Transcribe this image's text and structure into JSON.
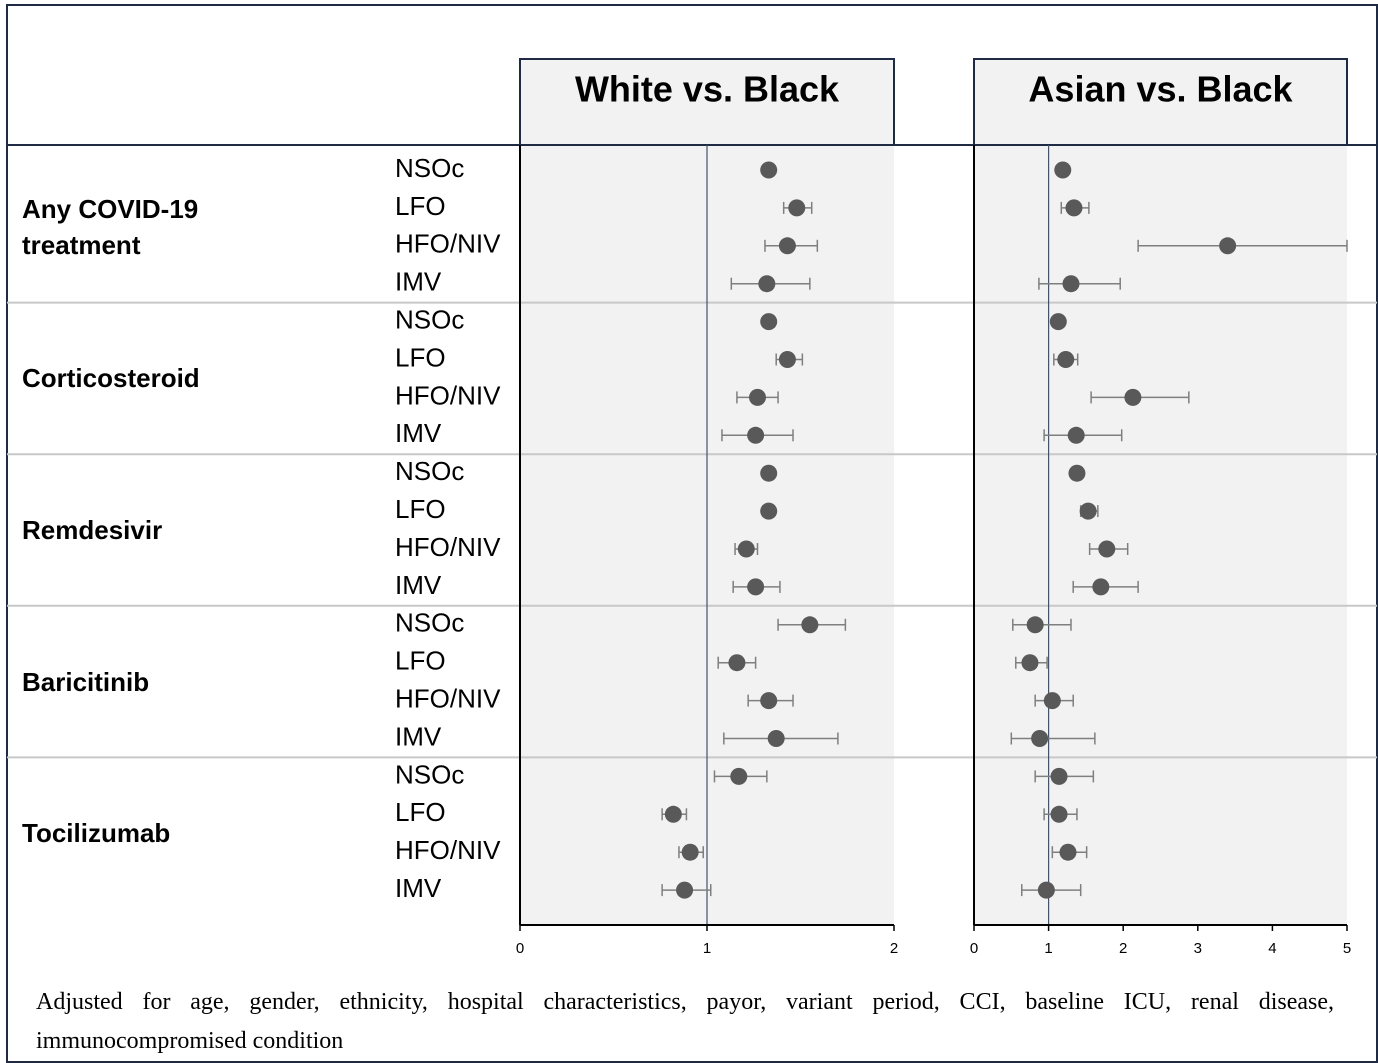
{
  "rows": [
    {
      "group": "Any COVID-19 treatment",
      "labels": [
        "NSOc",
        "LFO",
        "HFO/NIV",
        "IMV"
      ]
    },
    {
      "group": "Corticosteroid",
      "labels": [
        "NSOc",
        "LFO",
        "HFO/NIV",
        "IMV"
      ]
    },
    {
      "group": "Remdesivir",
      "labels": [
        "NSOc",
        "LFO",
        "HFO/NIV",
        "IMV"
      ]
    },
    {
      "group": "Baricitinib",
      "labels": [
        "NSOc",
        "LFO",
        "HFO/NIV",
        "IMV"
      ]
    },
    {
      "group": "Tocilizumab",
      "labels": [
        "NSOc",
        "LFO",
        "HFO/NIV",
        "IMV"
      ]
    }
  ],
  "chart_data": [
    {
      "type": "forest",
      "title": "White vs. Black",
      "xlim": [
        0,
        2
      ],
      "xticks": [
        0,
        1,
        2
      ],
      "reference": 1,
      "color": "#595959",
      "values": [
        1.33,
        1.48,
        1.43,
        1.32,
        1.33,
        1.43,
        1.27,
        1.26,
        1.33,
        1.33,
        1.21,
        1.26,
        1.55,
        1.16,
        1.33,
        1.37,
        1.17,
        0.82,
        0.91,
        0.88
      ],
      "lower": [
        1.31,
        1.41,
        1.31,
        1.13,
        1.31,
        1.37,
        1.16,
        1.08,
        1.31,
        1.3,
        1.15,
        1.14,
        1.38,
        1.06,
        1.22,
        1.09,
        1.04,
        0.76,
        0.85,
        0.76
      ],
      "upper": [
        1.35,
        1.56,
        1.59,
        1.55,
        1.36,
        1.51,
        1.38,
        1.46,
        1.35,
        1.35,
        1.27,
        1.39,
        1.74,
        1.26,
        1.46,
        1.7,
        1.32,
        0.89,
        0.98,
        1.02
      ]
    },
    {
      "type": "forest",
      "title": "Asian vs. Black",
      "xlim": [
        0,
        5
      ],
      "xticks": [
        0,
        1,
        2,
        3,
        4,
        5
      ],
      "reference": 1,
      "color": "#595959",
      "values": [
        1.19,
        1.34,
        3.4,
        1.3,
        1.13,
        1.23,
        2.13,
        1.37,
        1.38,
        1.53,
        1.78,
        1.7,
        0.82,
        0.75,
        1.05,
        0.88,
        1.14,
        1.14,
        1.26,
        0.97
      ],
      "lower": [
        1.16,
        1.17,
        2.2,
        0.87,
        1.1,
        1.07,
        1.57,
        0.94,
        1.35,
        1.43,
        1.55,
        1.33,
        0.52,
        0.56,
        0.82,
        0.5,
        0.82,
        0.94,
        1.05,
        0.64
      ],
      "upper": [
        1.23,
        1.54,
        5.0,
        1.96,
        1.16,
        1.39,
        2.88,
        1.98,
        1.41,
        1.66,
        2.06,
        2.2,
        1.3,
        0.98,
        1.33,
        1.62,
        1.6,
        1.38,
        1.51,
        1.43
      ]
    }
  ],
  "footnote": "Adjusted for age, gender, ethnicity, hospital characteristics, payor, variant period, CCI, baseline ICU, renal disease, immunocompromised condition"
}
